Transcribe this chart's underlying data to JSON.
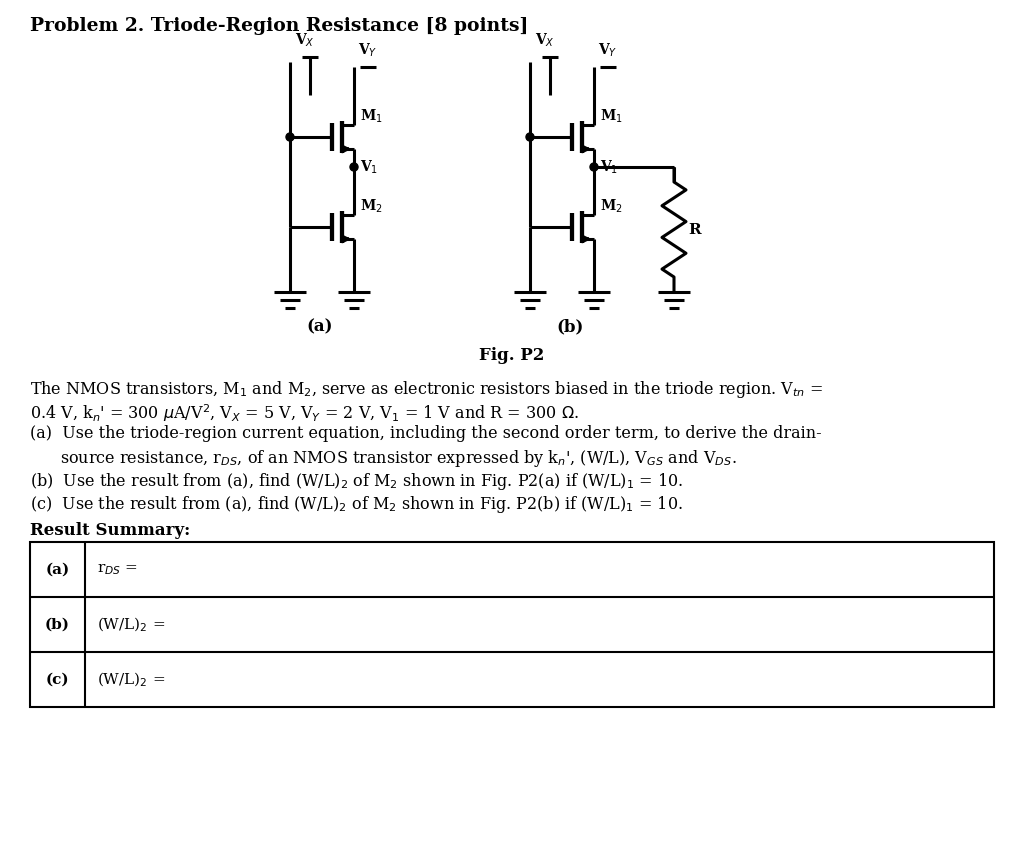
{
  "title": "Problem 2. Triode-Region Resistance [8 points]",
  "bg_color": "#ffffff",
  "fig_caption": "Fig. P2",
  "sub_a_label": "(a)",
  "sub_b_label": "(b)"
}
